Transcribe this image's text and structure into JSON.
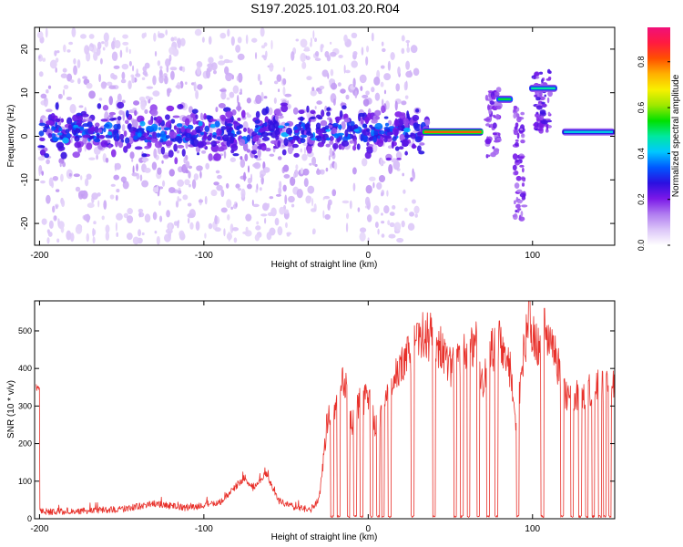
{
  "title": "S197.2025.101.03.20.R04",
  "chart_data": [
    {
      "type": "heatmap",
      "xlabel": "Height of straight line (km)",
      "ylabel": "Frequency (Hz)",
      "xlim": [
        -203,
        150
      ],
      "ylim": [
        -25,
        25
      ],
      "xticks": [
        -200,
        -100,
        0,
        100
      ],
      "yticks": [
        -20,
        -10,
        0,
        10,
        20
      ],
      "colorbar": {
        "label": "Normalized spectral amplitude",
        "range": [
          0,
          0.95
        ],
        "ticks": [
          0.0,
          0.2,
          0.4,
          0.6,
          0.8
        ],
        "colors": [
          "#ffffff",
          "#dcc6f8",
          "#b07cf0",
          "#7b18e8",
          "#2b10e0",
          "#0058ff",
          "#00c8ff",
          "#00e8a0",
          "#00e000",
          "#a0e800",
          "#f8f000",
          "#ffb000",
          "#ff5000",
          "#ff1a40",
          "#f0107a"
        ]
      },
      "features": [
        {
          "name": "broadband activity",
          "x": [
            -200,
            30
          ],
          "frequency": 1,
          "spread_hz": 24,
          "level": 0.2
        },
        {
          "name": "carrier line",
          "x": [
            33,
            70
          ],
          "frequency": 1,
          "level": 0.85
        },
        {
          "name": "tone",
          "x": [
            78,
            88
          ],
          "frequency": 8.5,
          "level": 0.55
        },
        {
          "name": "tone",
          "x": [
            98,
            115
          ],
          "frequency": 11,
          "level": 0.5
        },
        {
          "name": "carrier line",
          "x": [
            118,
            150
          ],
          "frequency": 1,
          "level": 0.45
        }
      ]
    },
    {
      "type": "line",
      "xlabel": "Height of straight line (km)",
      "ylabel": "SNR (10 * v/v)",
      "xlim": [
        -203,
        150
      ],
      "ylim": [
        0,
        580
      ],
      "xticks": [
        -200,
        -100,
        0,
        100
      ],
      "yticks": [
        0,
        100,
        200,
        300,
        400,
        500
      ],
      "series_color": "#e8302a",
      "envelope": [
        {
          "x": -200,
          "y": 18
        },
        {
          "x": -150,
          "y": 25
        },
        {
          "x": -130,
          "y": 40
        },
        {
          "x": -110,
          "y": 28
        },
        {
          "x": -90,
          "y": 45
        },
        {
          "x": -75,
          "y": 110
        },
        {
          "x": -70,
          "y": 80
        },
        {
          "x": -62,
          "y": 120
        },
        {
          "x": -55,
          "y": 50
        },
        {
          "x": -45,
          "y": 30
        },
        {
          "x": -35,
          "y": 25
        },
        {
          "x": -30,
          "y": 50
        },
        {
          "x": -28,
          "y": 120
        },
        {
          "x": -25,
          "y": 260
        },
        {
          "x": -20,
          "y": 300
        },
        {
          "x": -15,
          "y": 380
        },
        {
          "x": -10,
          "y": 250
        },
        {
          "x": -5,
          "y": 310
        },
        {
          "x": 0,
          "y": 320
        },
        {
          "x": 5,
          "y": 240
        },
        {
          "x": 10,
          "y": 330
        },
        {
          "x": 15,
          "y": 360
        },
        {
          "x": 20,
          "y": 400
        },
        {
          "x": 25,
          "y": 440
        },
        {
          "x": 30,
          "y": 470
        },
        {
          "x": 35,
          "y": 490
        },
        {
          "x": 40,
          "y": 480
        },
        {
          "x": 45,
          "y": 450
        },
        {
          "x": 50,
          "y": 400
        },
        {
          "x": 55,
          "y": 440
        },
        {
          "x": 60,
          "y": 430
        },
        {
          "x": 65,
          "y": 480
        },
        {
          "x": 70,
          "y": 350
        },
        {
          "x": 75,
          "y": 450
        },
        {
          "x": 80,
          "y": 470
        },
        {
          "x": 85,
          "y": 440
        },
        {
          "x": 90,
          "y": 260
        },
        {
          "x": 95,
          "y": 470
        },
        {
          "x": 100,
          "y": 500
        },
        {
          "x": 105,
          "y": 440
        },
        {
          "x": 110,
          "y": 460
        },
        {
          "x": 115,
          "y": 420
        },
        {
          "x": 120,
          "y": 330
        },
        {
          "x": 125,
          "y": 320
        },
        {
          "x": 130,
          "y": 330
        },
        {
          "x": 135,
          "y": 340
        },
        {
          "x": 140,
          "y": 350
        },
        {
          "x": 145,
          "y": 360
        },
        {
          "x": 150,
          "y": 350
        }
      ],
      "peaks": [
        {
          "x": 30,
          "y": 520
        },
        {
          "x": 98,
          "y": 580
        },
        {
          "x": 107,
          "y": 560
        }
      ],
      "dropouts_x": [
        -22,
        -18,
        -12,
        -8,
        -4,
        2,
        6,
        9,
        13,
        27,
        40,
        53,
        57,
        61,
        67,
        73,
        78,
        91,
        106,
        118,
        124,
        129,
        133,
        137,
        141,
        144,
        147
      ]
    }
  ]
}
